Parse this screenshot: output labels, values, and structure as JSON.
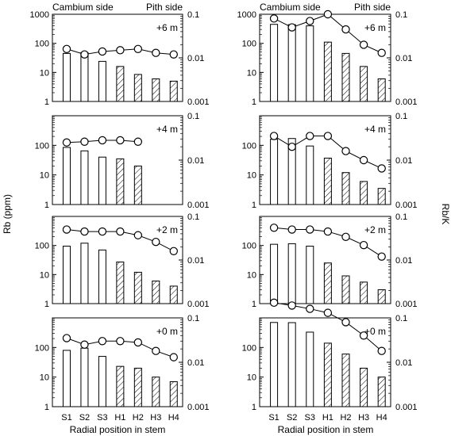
{
  "chart_data": {
    "type": "bar",
    "categories": [
      "S1",
      "S2",
      "S3",
      "H1",
      "H2",
      "H3",
      "H4"
    ],
    "xlabel": "Radial position in stem",
    "ylabel_left": "Rb (ppm)",
    "ylabel_right": "Rb/K",
    "header_left": "Cambium side",
    "header_right": "Pith side",
    "left_axis": {
      "scale": "log",
      "range": [
        1,
        1000
      ],
      "ticks": [
        "1",
        "10",
        "100",
        "1000"
      ]
    },
    "right_axis": {
      "scale": "log",
      "range": [
        0.001,
        0.1
      ],
      "ticks": [
        "0.001",
        "0.01",
        "0.1"
      ]
    },
    "sapwood_categories": [
      "S1",
      "S2",
      "S3"
    ],
    "heartwood_categories": [
      "H1",
      "H2",
      "H3",
      "H4"
    ],
    "bar_colors": {
      "fill": "#ffffff",
      "stroke": "#000000",
      "hatch": "#000000"
    },
    "columns": [
      {
        "panels": [
          {
            "label": "+6 m",
            "rb": [
              45,
              48,
              24,
              16,
              8.5,
              6,
              5
            ],
            "rbk": [
              0.016,
              0.012,
              0.014,
              0.015,
              0.016,
              0.013,
              0.012
            ]
          },
          {
            "label": "+4 m",
            "rb": [
              85,
              65,
              40,
              35,
              20,
              null,
              null
            ],
            "rbk": [
              0.025,
              0.026,
              0.028,
              0.028,
              0.026,
              null,
              null
            ]
          },
          {
            "label": "+2 m",
            "rb": [
              95,
              120,
              70,
              27,
              12,
              6,
              4
            ],
            "rbk": [
              0.05,
              0.045,
              0.045,
              0.045,
              0.037,
              0.026,
              0.016
            ]
          },
          {
            "label": "+0 m",
            "rb": [
              80,
              95,
              50,
              23,
              20,
              10,
              7
            ],
            "rbk": [
              0.035,
              0.025,
              0.03,
              0.03,
              0.028,
              0.018,
              0.013
            ]
          }
        ]
      },
      {
        "panels": [
          {
            "label": "+6 m",
            "rb": [
              450,
              440,
              400,
              110,
              45,
              16,
              6
            ],
            "rbk": [
              0.08,
              0.05,
              0.07,
              0.1,
              0.045,
              0.02,
              0.013
            ]
          },
          {
            "label": "+4 m",
            "rb": [
              160,
              170,
              95,
              37,
              12,
              6,
              3.5
            ],
            "rbk": [
              0.035,
              0.02,
              0.035,
              0.035,
              0.016,
              0.01,
              0.0065
            ]
          },
          {
            "label": "+2 m",
            "rb": [
              110,
              115,
              95,
              25,
              9,
              5.5,
              3
            ],
            "rbk": [
              0.055,
              0.05,
              0.05,
              0.045,
              0.034,
              0.022,
              0.012
            ]
          },
          {
            "label": "+0 m",
            "rb": [
              700,
              690,
              330,
              140,
              60,
              20,
              10
            ],
            "rbk": [
              0.22,
              0.19,
              0.16,
              0.13,
              0.08,
              0.04,
              0.018
            ]
          }
        ]
      }
    ]
  }
}
